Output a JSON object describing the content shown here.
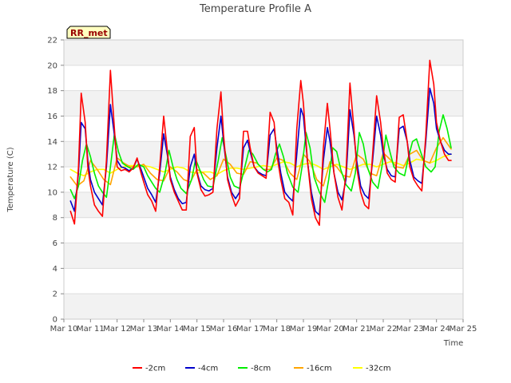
{
  "chart_data": {
    "type": "line",
    "title": "Temperature Profile A",
    "xlabel": "Time",
    "ylabel": "Temperature (C)",
    "badge": "RR_met",
    "xlim": [
      10,
      25
    ],
    "ylim": [
      0,
      22
    ],
    "x_ticks": [
      10,
      11,
      12,
      13,
      14,
      15,
      16,
      17,
      18,
      19,
      20,
      21,
      22,
      23,
      24,
      25
    ],
    "x_tick_labels": [
      "Mar 10",
      "Mar 11",
      "Mar 12",
      "Mar 13",
      "Mar 14",
      "Mar 15",
      "Mar 16",
      "Mar 17",
      "Mar 18",
      "Mar 19",
      "Mar 20",
      "Mar 21",
      "Mar 22",
      "Mar 23",
      "Mar 24",
      "Mar 25"
    ],
    "y_ticks": [
      0,
      2,
      4,
      6,
      8,
      10,
      12,
      14,
      16,
      18,
      20,
      22
    ],
    "legend_position": "bottom",
    "background_bands": true,
    "series": [
      {
        "name": "-2cm",
        "color": "#ff0000",
        "x": [
          10.25,
          10.4,
          10.55,
          10.65,
          10.8,
          10.9,
          11.0,
          11.15,
          11.3,
          11.45,
          11.6,
          11.75,
          11.9,
          12.0,
          12.15,
          12.3,
          12.45,
          12.6,
          12.75,
          12.9,
          13.0,
          13.15,
          13.3,
          13.45,
          13.6,
          13.75,
          13.9,
          14.0,
          14.15,
          14.3,
          14.45,
          14.6,
          14.75,
          14.9,
          15.0,
          15.15,
          15.3,
          15.45,
          15.6,
          15.75,
          15.9,
          16.0,
          16.15,
          16.3,
          16.45,
          16.6,
          16.75,
          16.9,
          17.0,
          17.15,
          17.3,
          17.45,
          17.6,
          17.75,
          17.9,
          18.0,
          18.15,
          18.3,
          18.45,
          18.6,
          18.75,
          18.9,
          19.0,
          19.15,
          19.3,
          19.45,
          19.6,
          19.75,
          19.9,
          20.0,
          20.15,
          20.3,
          20.45,
          20.6,
          20.75,
          20.9,
          21.0,
          21.15,
          21.3,
          21.45,
          21.6,
          21.75,
          21.9,
          22.0,
          22.15,
          22.3,
          22.45,
          22.6,
          22.75,
          22.9,
          23.0,
          23.15,
          23.3,
          23.45,
          23.6,
          23.75,
          23.9,
          24.0,
          24.15,
          24.3,
          24.45,
          24.55
        ],
        "y": [
          8.5,
          7.5,
          12.0,
          17.8,
          15.5,
          12.0,
          10.5,
          9.0,
          8.5,
          8.1,
          12.5,
          19.6,
          15.0,
          12.0,
          11.7,
          11.8,
          11.6,
          11.9,
          12.7,
          11.5,
          10.8,
          9.8,
          9.3,
          8.5,
          12.0,
          16.0,
          13.0,
          11.0,
          10.0,
          9.3,
          8.6,
          8.6,
          14.4,
          15.1,
          11.5,
          10.2,
          9.7,
          9.8,
          10.0,
          15.0,
          17.9,
          14.5,
          11.0,
          9.8,
          8.9,
          9.5,
          14.8,
          14.8,
          13.5,
          12.0,
          11.5,
          11.3,
          11.1,
          16.3,
          15.5,
          13.0,
          11.0,
          9.5,
          9.2,
          8.2,
          15.0,
          18.8,
          17.0,
          12.5,
          9.5,
          8.0,
          7.4,
          13.5,
          17.0,
          15.0,
          11.5,
          9.6,
          8.6,
          11.5,
          18.6,
          15.0,
          12.0,
          10.0,
          9.0,
          8.7,
          13.0,
          17.6,
          15.5,
          13.5,
          11.5,
          11.0,
          10.8,
          15.9,
          16.1,
          14.0,
          12.0,
          11.0,
          10.5,
          10.1,
          14.5,
          20.4,
          18.5,
          15.5,
          14.0,
          13.0,
          12.5,
          12.5
        ]
      },
      {
        "name": "-4cm",
        "color": "#0000cc",
        "x": [
          10.25,
          10.4,
          10.55,
          10.65,
          10.8,
          10.9,
          11.0,
          11.15,
          11.3,
          11.45,
          11.6,
          11.75,
          11.9,
          12.0,
          12.15,
          12.3,
          12.45,
          12.6,
          12.75,
          12.9,
          13.0,
          13.15,
          13.3,
          13.45,
          13.6,
          13.75,
          13.9,
          14.0,
          14.15,
          14.3,
          14.45,
          14.6,
          14.75,
          14.9,
          15.0,
          15.15,
          15.3,
          15.45,
          15.6,
          15.75,
          15.9,
          16.0,
          16.15,
          16.3,
          16.45,
          16.6,
          16.75,
          16.9,
          17.0,
          17.15,
          17.3,
          17.45,
          17.6,
          17.75,
          17.9,
          18.0,
          18.15,
          18.3,
          18.45,
          18.6,
          18.75,
          18.9,
          19.0,
          19.15,
          19.3,
          19.45,
          19.6,
          19.75,
          19.9,
          20.0,
          20.15,
          20.3,
          20.45,
          20.6,
          20.75,
          20.9,
          21.0,
          21.15,
          21.3,
          21.45,
          21.6,
          21.75,
          21.9,
          22.0,
          22.15,
          22.3,
          22.45,
          22.6,
          22.75,
          22.9,
          23.0,
          23.15,
          23.3,
          23.45,
          23.6,
          23.75,
          23.9,
          24.0,
          24.15,
          24.3,
          24.45,
          24.55
        ],
        "y": [
          9.3,
          8.5,
          11.5,
          15.5,
          15.0,
          12.5,
          11.0,
          10.0,
          9.5,
          9.0,
          12.0,
          16.9,
          14.5,
          12.5,
          12.0,
          11.9,
          11.7,
          11.9,
          12.6,
          11.8,
          11.2,
          10.3,
          9.8,
          9.2,
          11.5,
          14.6,
          12.8,
          11.2,
          10.2,
          9.5,
          9.1,
          9.2,
          12.0,
          13.0,
          11.6,
          10.5,
          10.2,
          10.1,
          10.3,
          13.5,
          16.0,
          14.0,
          11.2,
          10.0,
          9.5,
          10.0,
          13.5,
          14.1,
          13.2,
          12.0,
          11.6,
          11.4,
          11.3,
          14.5,
          15.0,
          13.5,
          11.5,
          10.0,
          9.6,
          9.3,
          13.0,
          16.6,
          16.0,
          12.5,
          10.0,
          8.5,
          8.2,
          12.5,
          15.1,
          14.0,
          11.5,
          10.0,
          9.4,
          11.0,
          16.5,
          14.5,
          12.5,
          10.5,
          9.8,
          9.5,
          12.5,
          16.0,
          14.5,
          13.0,
          11.8,
          11.3,
          11.2,
          15.0,
          15.2,
          14.0,
          12.5,
          11.2,
          10.9,
          10.7,
          14.0,
          18.2,
          17.0,
          15.0,
          14.0,
          13.3,
          13.0,
          13.0
        ]
      },
      {
        "name": "-8cm",
        "color": "#00ee00",
        "x": [
          10.25,
          10.4,
          10.55,
          10.7,
          10.85,
          11.0,
          11.15,
          11.3,
          11.45,
          11.6,
          11.75,
          11.9,
          12.05,
          12.2,
          12.4,
          12.6,
          12.8,
          13.0,
          13.15,
          13.3,
          13.45,
          13.6,
          13.8,
          13.95,
          14.1,
          14.25,
          14.4,
          14.6,
          14.8,
          14.95,
          15.1,
          15.25,
          15.4,
          15.6,
          15.8,
          15.95,
          16.1,
          16.25,
          16.4,
          16.6,
          16.8,
          16.95,
          17.1,
          17.3,
          17.5,
          17.65,
          17.8,
          17.95,
          18.1,
          18.25,
          18.4,
          18.6,
          18.8,
          18.95,
          19.1,
          19.25,
          19.4,
          19.6,
          19.8,
          19.95,
          20.1,
          20.25,
          20.4,
          20.6,
          20.8,
          20.95,
          21.1,
          21.25,
          21.4,
          21.6,
          21.8,
          21.95,
          22.1,
          22.25,
          22.4,
          22.6,
          22.8,
          22.95,
          23.1,
          23.25,
          23.4,
          23.6,
          23.8,
          23.95,
          24.1,
          24.25,
          24.4,
          24.55
        ],
        "y": [
          10.2,
          9.5,
          10.5,
          12.5,
          13.8,
          12.8,
          11.5,
          10.5,
          10.0,
          9.6,
          12.0,
          14.6,
          13.2,
          12.3,
          12.0,
          11.8,
          12.2,
          12.0,
          11.3,
          10.8,
          10.3,
          10.0,
          11.5,
          13.3,
          12.0,
          11.0,
          10.3,
          9.9,
          11.0,
          12.6,
          11.8,
          11.0,
          10.5,
          10.4,
          12.5,
          14.3,
          12.8,
          11.2,
          10.5,
          10.3,
          12.0,
          13.3,
          13.0,
          12.2,
          11.8,
          11.6,
          11.8,
          13.0,
          13.8,
          12.8,
          11.5,
          10.4,
          10.0,
          12.0,
          14.7,
          13.5,
          11.2,
          10.0,
          9.2,
          11.0,
          13.5,
          13.2,
          11.8,
          10.6,
          10.1,
          11.5,
          14.7,
          13.8,
          12.0,
          10.8,
          10.3,
          12.0,
          14.5,
          13.2,
          12.0,
          11.5,
          11.3,
          12.8,
          14.0,
          14.2,
          13.2,
          12.0,
          11.6,
          12.0,
          14.8,
          16.1,
          15.0,
          13.5
        ]
      },
      {
        "name": "-16cm",
        "color": "#ffa500",
        "x": [
          10.25,
          10.5,
          10.75,
          11.0,
          11.25,
          11.5,
          11.75,
          12.0,
          12.25,
          12.5,
          12.75,
          13.0,
          13.25,
          13.5,
          13.75,
          14.0,
          14.25,
          14.5,
          14.75,
          15.0,
          15.25,
          15.5,
          15.75,
          16.0,
          16.25,
          16.5,
          16.75,
          17.0,
          17.25,
          17.5,
          17.75,
          18.0,
          18.25,
          18.5,
          18.75,
          19.0,
          19.25,
          19.5,
          19.75,
          20.0,
          20.25,
          20.5,
          20.75,
          21.0,
          21.25,
          21.5,
          21.75,
          22.0,
          22.25,
          22.5,
          22.75,
          23.0,
          23.25,
          23.5,
          23.75,
          24.0,
          24.25,
          24.55
        ],
        "y": [
          11.2,
          10.5,
          10.9,
          12.5,
          11.8,
          11.0,
          10.6,
          12.7,
          12.3,
          12.0,
          12.0,
          12.2,
          11.5,
          11.0,
          10.9,
          12.0,
          11.6,
          11.0,
          10.8,
          11.8,
          11.5,
          11.0,
          11.3,
          12.6,
          12.2,
          11.5,
          11.4,
          12.4,
          12.3,
          11.8,
          11.8,
          12.7,
          12.5,
          11.5,
          11.0,
          13.0,
          12.4,
          11.0,
          10.5,
          12.4,
          12.0,
          11.3,
          11.2,
          13.0,
          12.6,
          11.5,
          11.3,
          13.1,
          12.6,
          12.0,
          11.9,
          13.0,
          13.3,
          12.5,
          12.3,
          13.5,
          14.3,
          13.4
        ]
      },
      {
        "name": "-32cm",
        "color": "#ffff00",
        "x": [
          10.25,
          10.5,
          10.75,
          11.0,
          11.25,
          11.5,
          11.75,
          12.0,
          12.25,
          12.5,
          12.75,
          13.0,
          13.25,
          13.5,
          13.75,
          14.0,
          14.25,
          14.5,
          14.75,
          15.0,
          15.25,
          15.5,
          15.75,
          16.0,
          16.25,
          16.5,
          16.75,
          17.0,
          17.25,
          17.5,
          17.75,
          18.0,
          18.25,
          18.5,
          18.75,
          19.0,
          19.25,
          19.5,
          19.75,
          20.0,
          20.25,
          20.5,
          20.75,
          21.0,
          21.25,
          21.5,
          21.75,
          22.0,
          22.25,
          22.5,
          22.75,
          23.0,
          23.25,
          23.5,
          23.75,
          24.0,
          24.25,
          24.55
        ],
        "y": [
          11.8,
          11.5,
          11.3,
          11.6,
          11.8,
          11.8,
          11.5,
          11.8,
          12.0,
          12.1,
          12.1,
          12.1,
          12.0,
          11.8,
          11.6,
          11.8,
          12.0,
          11.9,
          11.6,
          11.5,
          11.6,
          11.6,
          11.4,
          11.7,
          11.9,
          11.9,
          11.8,
          11.9,
          12.0,
          12.1,
          12.0,
          12.2,
          12.4,
          12.3,
          12.0,
          12.2,
          12.3,
          12.1,
          11.8,
          12.0,
          12.2,
          12.0,
          11.8,
          12.0,
          12.2,
          12.2,
          12.0,
          12.2,
          12.4,
          12.3,
          12.1,
          12.3,
          12.6,
          12.5,
          12.3,
          12.5,
          12.8,
          13.0
        ]
      }
    ]
  }
}
